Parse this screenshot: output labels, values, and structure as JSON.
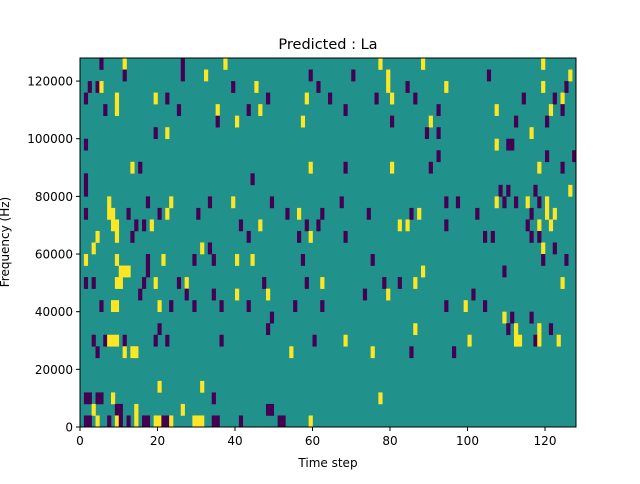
{
  "chart_data": {
    "type": "heatmap",
    "title": "Predicted : La",
    "xlabel": "Time step",
    "ylabel": "Frequency (Hz)",
    "xlim": [
      0,
      128
    ],
    "ylim": [
      0,
      128000
    ],
    "xticks": [
      0,
      20,
      40,
      60,
      80,
      100,
      120
    ],
    "yticks": [
      0,
      20000,
      40000,
      60000,
      80000,
      100000,
      120000
    ],
    "xtick_labels": [
      "0",
      "20",
      "40",
      "60",
      "80",
      "100",
      "120"
    ],
    "ytick_labels": [
      "0",
      "20000",
      "40000",
      "60000",
      "80000",
      "100000",
      "120000"
    ],
    "n_cols": 128,
    "n_rows": 32,
    "levels": {
      "p": "low",
      ".": "mid",
      "y": "high"
    },
    "colors": {
      "p": "#440154",
      ".": "#21918c",
      "y": "#fde725"
    },
    "rows_top_to_bottom": [
      ".....p.....y..............p..........y.......................................y..........y..............................y.....",
      "...........p..............p.....y..........................p..........p........y.........................p....................y",
      "..p.py.................................p.....y...............p.................y....p.........y........................y.....p.",
      ".p.......y.........y..p.........................p.........y.....p...........p...y.....p...........................p.......p.y...",
      "......p..y...............p.........y.......p..y.....................p.......................p..............y.............y..p...",
      "...................................p....y................y......................p.........y.....................p.......p......",
      "...................p..y..................................................................p..p.......................y........",
      ".p.........................................................................................................y..pp..............",
      "............................................................................................p...........................p......p",
      ".............y.p...........................................y........p...........y.........p...........................y.....p...",
      ".p..........................................p....................................................................................",
      ".p..........................................................................................................p.p......p........y",
      ".......y.........p.....y.........p.....y.........p.................p..........................p..p.........y.p..p..y..p.y.......",
      ".p.....yy...p.......p.y.......p......................p..y.....p...........p..........p.y..............p.............p...y.y.....",
      "........yy....p.p.y......................p....y...........p..p....................y.y.........p....................p..y..y......",
      "....y....y...p.............................p............p..y........p...................................p.p.........p.p.........",
      "...y...........................y.p.....................................................................................y..p...",
      ".y.......y.......p...y.......p....p.....y...y............p.................p...........................................p.....p..",
      "..........yyy....p......................................................................y....................p..................",
      ".p.p.....yy.....p..y.....p.y...................p..........p...y...............p...p...y.....................................y..",
      "...............p...........p......p.....y.......y........................p.....y.....................p.......................",
      ".....p..yy..........y..p.....p......p......p...........p......p...............................p....y....p....................",
      ".................................................p...........................................................y.p....p....",
      "....................p...........................p.....................................y.......................p.y.....y..p....",
      "...p..pyyy.p.......p..p.............p.......................p.......y...............................y...........yy...py....y.",
      "....p......y.yy.......................................y....................y.........p..........p.............................",
      "......................................................................................................................................",
      ".............................................................................................................................",
      "....................y..........y..............................................................................................",
      ".pp.pp..y.........................p..........................................y..................................................",
      "...y.....pp...y...........y.....................pp..............................................................................",
      ".pp.y..p.yp.p.y.pp.yyppy.....yyy..pp.....p.........pp......y....................................................................."
    ]
  }
}
